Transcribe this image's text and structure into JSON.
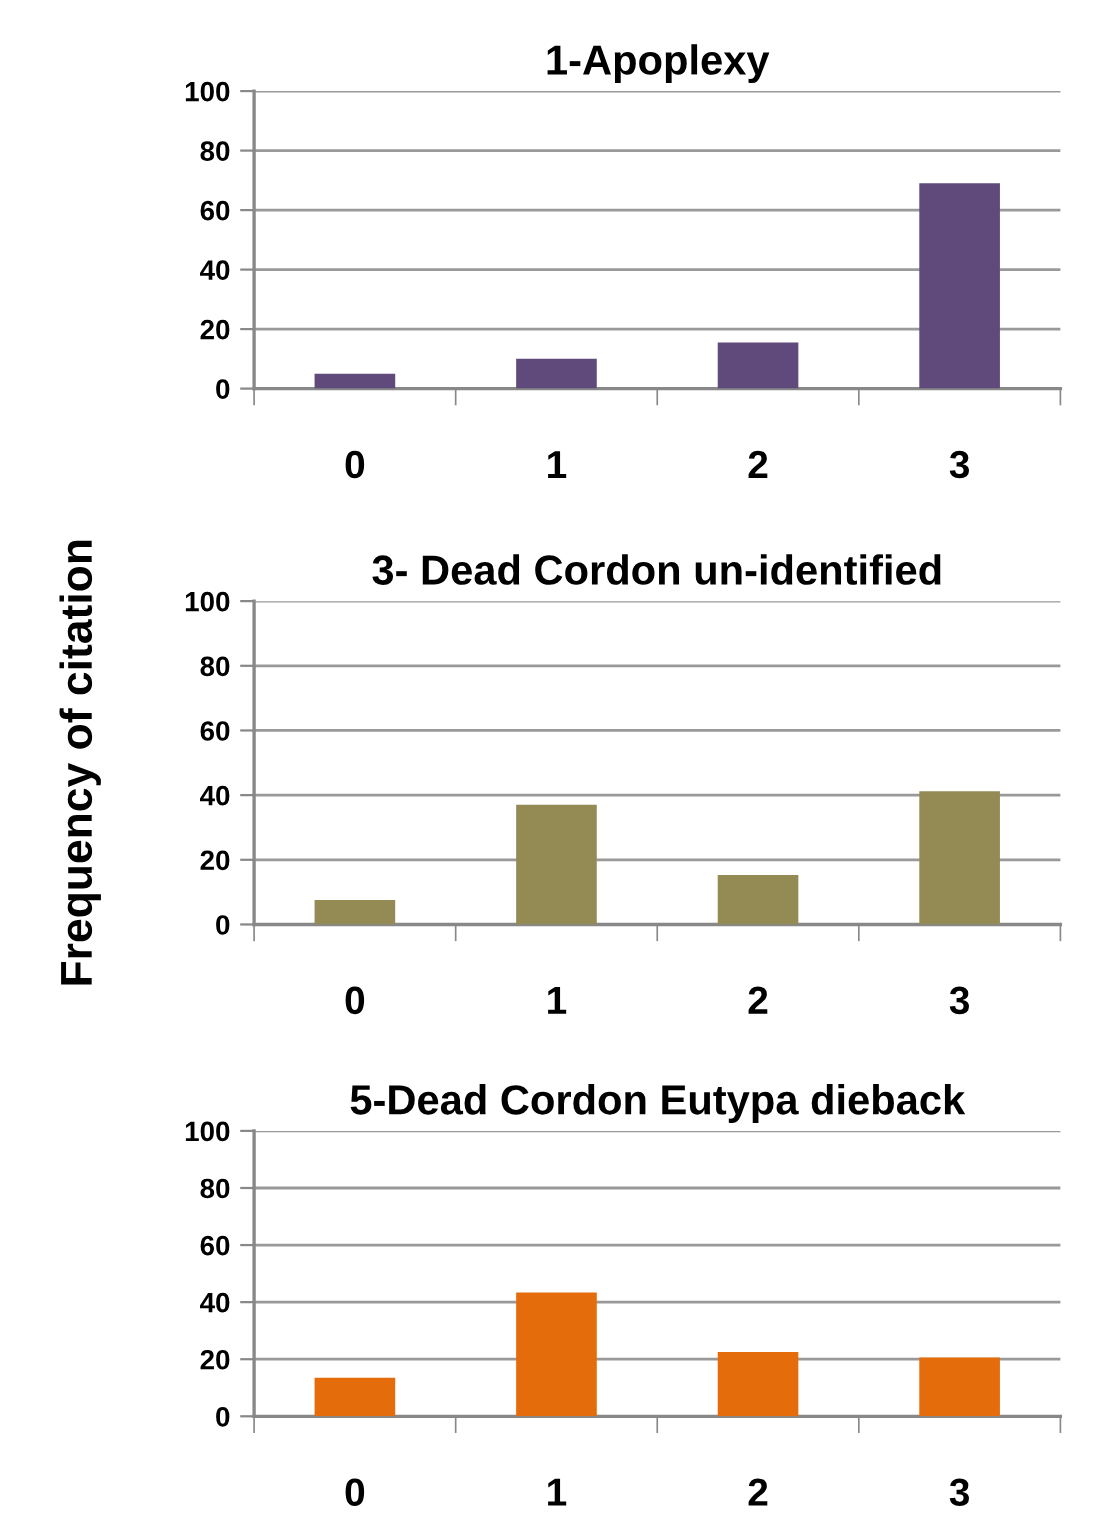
{
  "chart_data": [
    {
      "type": "bar",
      "title": "1-Apoplexy",
      "categories": [
        "0",
        "1",
        "2",
        "3"
      ],
      "values": [
        5,
        10,
        15.5,
        69
      ],
      "color": "#604a7b",
      "ylim": [
        0,
        100
      ],
      "yticks": [
        0,
        20,
        40,
        60,
        80,
        100
      ],
      "grid": "y"
    },
    {
      "type": "bar",
      "title": "3- Dead Cordon un-identified",
      "ylabel": "Frequency of citation",
      "categories": [
        "0",
        "1",
        "2",
        "3"
      ],
      "values": [
        7.6,
        37,
        15.3,
        41.2
      ],
      "color": "#948a54",
      "ylim": [
        0,
        100
      ],
      "yticks": [
        0,
        20,
        40,
        60,
        80,
        100
      ],
      "grid": "y"
    },
    {
      "type": "bar",
      "title": "5-Dead Cordon Eutypa dieback",
      "categories": [
        "0",
        "1",
        "2",
        "3"
      ],
      "values": [
        13.5,
        43.4,
        22.5,
        20.6
      ],
      "color": "#e46c0a",
      "ylim": [
        0,
        100
      ],
      "yticks": [
        0,
        20,
        40,
        60,
        80,
        100
      ],
      "grid": "y"
    }
  ]
}
